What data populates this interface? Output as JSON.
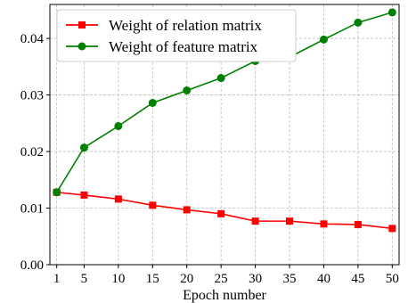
{
  "chart_data": {
    "type": "line",
    "title": "",
    "xlabel": "Epoch number",
    "ylabel": "",
    "x": [
      1,
      5,
      10,
      15,
      20,
      25,
      30,
      35,
      40,
      45,
      50
    ],
    "x_ticks": [
      "1",
      "5",
      "10",
      "15",
      "20",
      "25",
      "30",
      "35",
      "40",
      "45",
      "50"
    ],
    "y_ticks": [
      "0.00",
      "0.01",
      "0.02",
      "0.03",
      "0.04"
    ],
    "ylim": [
      0,
      0.046
    ],
    "xlim": [
      0,
      51
    ],
    "grid": true,
    "legend_position": "top-left",
    "series": [
      {
        "name": "Weight of relation matrix",
        "color": "#ff0000",
        "marker": "square",
        "values": [
          0.0128,
          0.0123,
          0.0116,
          0.0105,
          0.0097,
          0.009,
          0.0077,
          0.0077,
          0.0072,
          0.0071,
          0.0064
        ]
      },
      {
        "name": "Weight of feature matrix",
        "color": "#008000",
        "marker": "circle",
        "values": [
          0.0128,
          0.0207,
          0.0245,
          0.0286,
          0.0308,
          0.033,
          0.036,
          0.0367,
          0.0398,
          0.0428,
          0.0446
        ]
      }
    ]
  }
}
